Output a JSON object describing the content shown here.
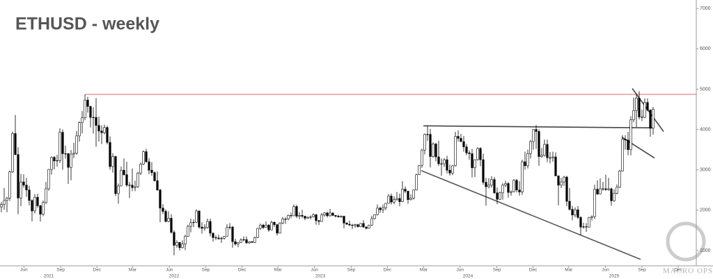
{
  "chart_data": {
    "type": "candlestick",
    "title": "ETHUSD - weekly",
    "watermark": "MACRO OPS",
    "up_color": "#ffffff",
    "down_color": "#000000",
    "outline_color": "#000000",
    "xlim": [
      -0.5,
      249.5
    ],
    "ylim": [
      620,
      7210
    ],
    "yticks": [
      1000,
      2000,
      3000,
      4000,
      5000,
      6000,
      7000
    ],
    "xticks": [
      {
        "value": 8.1,
        "label": "Jun"
      },
      {
        "value": 21.3,
        "label": "Sep"
      },
      {
        "value": 34.3,
        "label": "Dec"
      },
      {
        "value": 47.1,
        "label": "Mar"
      },
      {
        "value": 60.3,
        "label": "Jun"
      },
      {
        "value": 73.4,
        "label": "Sep"
      },
      {
        "value": 86.4,
        "label": "Dec"
      },
      {
        "value": 99.3,
        "label": "Mar"
      },
      {
        "value": 112.4,
        "label": "Jun"
      },
      {
        "value": 125.6,
        "label": "Sep"
      },
      {
        "value": 138.6,
        "label": "Dec"
      },
      {
        "value": 151.6,
        "label": "Mar"
      },
      {
        "value": 164.7,
        "label": "Jun"
      },
      {
        "value": 177.9,
        "label": "Sep"
      },
      {
        "value": 190.9,
        "label": "Dec"
      },
      {
        "value": 203.7,
        "label": "Mar"
      },
      {
        "value": 216.9,
        "label": "Jun"
      },
      {
        "value": 230.0,
        "label": "Sep"
      },
      {
        "value": 243.0,
        "label": "Dec"
      }
    ],
    "year_ticks": [
      {
        "value": 17,
        "label": "2021"
      },
      {
        "value": 62,
        "label": "2022"
      },
      {
        "value": 114.5,
        "label": "2023"
      },
      {
        "value": 167.5,
        "label": "2024"
      },
      {
        "value": 220,
        "label": "2025"
      }
    ],
    "lines": [
      {
        "x": [
          30,
          249.5
        ],
        "y": [
          4870,
          4870
        ],
        "color": "#e06666"
      },
      {
        "x": [
          151.5,
          234
        ],
        "y": [
          4090,
          4040
        ],
        "color": "#444444"
      },
      {
        "x": [
          150.75,
          229.5
        ],
        "y": [
          2980,
          780
        ],
        "color": "#555555"
      },
      {
        "x": [
          226.5,
          237.75
        ],
        "y": [
          5017,
          3948
        ],
        "color": "#444444"
      },
      {
        "x": [
          222.75,
          234.5
        ],
        "y": [
          3810,
          3293
        ],
        "color": "#444444"
      }
    ],
    "candles": [
      [
        2080,
        2200,
        1950,
        2140
      ],
      [
        2140,
        2550,
        2010,
        2240
      ],
      [
        2240,
        2330,
        1950,
        2300
      ],
      [
        2300,
        2980,
        2230,
        2950
      ],
      [
        2950,
        3950,
        2920,
        3900
      ],
      [
        3900,
        4360,
        3360,
        3380
      ],
      [
        3380,
        3560,
        1900,
        2300
      ],
      [
        2300,
        2900,
        2100,
        2700
      ],
      [
        2700,
        2890,
        2560,
        2620
      ],
      [
        2620,
        2800,
        2330,
        2500
      ],
      [
        2500,
        2600,
        2120,
        2240
      ],
      [
        2240,
        2270,
        1720,
        1980
      ],
      [
        1980,
        2400,
        1920,
        2320
      ],
      [
        2320,
        2410,
        2060,
        2110
      ],
      [
        2110,
        2130,
        1720,
        1900
      ],
      [
        1900,
        2240,
        1850,
        2190
      ],
      [
        2190,
        2700,
        2150,
        2530
      ],
      [
        2530,
        3020,
        2480,
        3010
      ],
      [
        3010,
        3330,
        2880,
        3310
      ],
      [
        3310,
        3340,
        3010,
        3220
      ],
      [
        3220,
        3370,
        3080,
        3230
      ],
      [
        3230,
        4030,
        3170,
        3930
      ],
      [
        3930,
        4000,
        3000,
        3400
      ],
      [
        3400,
        3600,
        3280,
        3400
      ],
      [
        3400,
        3420,
        2650,
        3060
      ],
      [
        3060,
        3490,
        2740,
        3390
      ],
      [
        3390,
        3670,
        3290,
        3410
      ],
      [
        3410,
        3960,
        3370,
        3840
      ],
      [
        3840,
        4200,
        3700,
        4170
      ],
      [
        4170,
        4460,
        3900,
        4290
      ],
      [
        4290,
        4870,
        4230,
        4730
      ],
      [
        4730,
        4810,
        4420,
        4570
      ],
      [
        4570,
        4590,
        4050,
        4300
      ],
      [
        4300,
        4550,
        3900,
        4300
      ],
      [
        4300,
        4780,
        3570,
        4100
      ],
      [
        4100,
        4320,
        3700,
        3960
      ],
      [
        3960,
        4100,
        3640,
        3920
      ],
      [
        3920,
        4120,
        3880,
        4050
      ],
      [
        4050,
        4090,
        3630,
        3680
      ],
      [
        3680,
        3830,
        3000,
        3080
      ],
      [
        3080,
        3410,
        2930,
        3330
      ],
      [
        3330,
        3350,
        2350,
        2410
      ],
      [
        2410,
        2660,
        2160,
        2600
      ],
      [
        2600,
        3080,
        2590,
        2990
      ],
      [
        2990,
        3280,
        2850,
        2880
      ],
      [
        2880,
        3200,
        2580,
        2620
      ],
      [
        2620,
        2700,
        2300,
        2620
      ],
      [
        2620,
        3030,
        2470,
        2560
      ],
      [
        2560,
        2730,
        2470,
        2580
      ],
      [
        2580,
        2950,
        2550,
        2920
      ],
      [
        2920,
        3180,
        2870,
        3140
      ],
      [
        3140,
        3480,
        3120,
        3450
      ],
      [
        3450,
        3520,
        3180,
        3200
      ],
      [
        3200,
        3290,
        2890,
        2990
      ],
      [
        2990,
        3190,
        2850,
        2930
      ],
      [
        2930,
        2960,
        2710,
        2730
      ],
      [
        2730,
        2960,
        2480,
        2500
      ],
      [
        2500,
        2530,
        1700,
        2050
      ],
      [
        2050,
        2150,
        1900,
        1970
      ],
      [
        1970,
        2020,
        1700,
        1720
      ],
      [
        1720,
        1970,
        1700,
        1800
      ],
      [
        1800,
        1900,
        1420,
        1450
      ],
      [
        1450,
        1500,
        880,
        1130
      ],
      [
        1130,
        1250,
        1070,
        1200
      ],
      [
        1200,
        1210,
        1000,
        1070
      ],
      [
        1070,
        1250,
        1050,
        1160
      ],
      [
        1160,
        1390,
        1010,
        1350
      ],
      [
        1350,
        1640,
        1340,
        1600
      ],
      [
        1600,
        1790,
        1450,
        1690
      ],
      [
        1690,
        1770,
        1580,
        1700
      ],
      [
        1700,
        2020,
        1680,
        1980
      ],
      [
        1980,
        1990,
        1540,
        1580
      ],
      [
        1580,
        1700,
        1420,
        1550
      ],
      [
        1550,
        1650,
        1490,
        1570
      ],
      [
        1570,
        1790,
        1540,
        1720
      ],
      [
        1720,
        1790,
        1350,
        1430
      ],
      [
        1430,
        1440,
        1220,
        1320
      ],
      [
        1320,
        1380,
        1260,
        1310
      ],
      [
        1310,
        1390,
        1270,
        1290
      ],
      [
        1290,
        1340,
        1190,
        1300
      ],
      [
        1300,
        1360,
        1270,
        1350
      ],
      [
        1350,
        1650,
        1340,
        1570
      ],
      [
        1570,
        1680,
        1520,
        1580
      ],
      [
        1580,
        1610,
        1070,
        1220
      ],
      [
        1220,
        1290,
        1120,
        1160
      ],
      [
        1160,
        1210,
        1080,
        1200
      ],
      [
        1200,
        1300,
        1190,
        1260
      ],
      [
        1260,
        1350,
        1230,
        1270
      ],
      [
        1270,
        1350,
        1160,
        1190
      ],
      [
        1190,
        1230,
        1160,
        1220
      ],
      [
        1220,
        1230,
        1190,
        1200
      ],
      [
        1200,
        1350,
        1190,
        1320
      ],
      [
        1320,
        1560,
        1310,
        1550
      ],
      [
        1550,
        1670,
        1510,
        1630
      ],
      [
        1630,
        1660,
        1530,
        1570
      ],
      [
        1570,
        1720,
        1560,
        1630
      ],
      [
        1630,
        1650,
        1460,
        1510
      ],
      [
        1510,
        1740,
        1500,
        1700
      ],
      [
        1700,
        1720,
        1580,
        1640
      ],
      [
        1640,
        1660,
        1370,
        1430
      ],
      [
        1430,
        1700,
        1420,
        1680
      ],
      [
        1680,
        1830,
        1650,
        1780
      ],
      [
        1780,
        1820,
        1660,
        1780
      ],
      [
        1780,
        1890,
        1750,
        1870
      ],
      [
        1870,
        1940,
        1800,
        1860
      ],
      [
        1860,
        2140,
        1850,
        2090
      ],
      [
        2090,
        2130,
        1800,
        1850
      ],
      [
        1850,
        1950,
        1780,
        1870
      ],
      [
        1870,
        2010,
        1800,
        1850
      ],
      [
        1850,
        1860,
        1750,
        1800
      ],
      [
        1800,
        1850,
        1790,
        1820
      ],
      [
        1820,
        1870,
        1770,
        1830
      ],
      [
        1830,
        1920,
        1820,
        1890
      ],
      [
        1890,
        1900,
        1640,
        1740
      ],
      [
        1740,
        1760,
        1630,
        1720
      ],
      [
        1720,
        1930,
        1710,
        1880
      ],
      [
        1880,
        1950,
        1840,
        1930
      ],
      [
        1930,
        1960,
        1820,
        1860
      ],
      [
        1860,
        2030,
        1840,
        1930
      ],
      [
        1930,
        1940,
        1850,
        1870
      ],
      [
        1870,
        1880,
        1820,
        1850
      ],
      [
        1850,
        1890,
        1820,
        1830
      ],
      [
        1830,
        1870,
        1810,
        1850
      ],
      [
        1850,
        1860,
        1550,
        1680
      ],
      [
        1680,
        1700,
        1640,
        1650
      ],
      [
        1650,
        1740,
        1610,
        1630
      ],
      [
        1630,
        1660,
        1530,
        1620
      ],
      [
        1620,
        1660,
        1560,
        1640
      ],
      [
        1640,
        1660,
        1570,
        1590
      ],
      [
        1590,
        1680,
        1580,
        1670
      ],
      [
        1670,
        1750,
        1570,
        1580
      ],
      [
        1580,
        1600,
        1520,
        1550
      ],
      [
        1550,
        1640,
        1540,
        1630
      ],
      [
        1630,
        1860,
        1610,
        1790
      ],
      [
        1790,
        1900,
        1770,
        1890
      ],
      [
        1890,
        2140,
        1870,
        2050
      ],
      [
        2050,
        2090,
        1930,
        2010
      ],
      [
        2010,
        2140,
        1930,
        2060
      ],
      [
        2060,
        2180,
        2000,
        2170
      ],
      [
        2170,
        2400,
        2160,
        2350
      ],
      [
        2350,
        2410,
        2140,
        2200
      ],
      [
        2200,
        2340,
        2150,
        2260
      ],
      [
        2260,
        2450,
        2230,
        2290
      ],
      [
        2290,
        2410,
        2100,
        2210
      ],
      [
        2210,
        2720,
        2200,
        2520
      ],
      [
        2520,
        2590,
        2420,
        2470
      ],
      [
        2470,
        2480,
        2160,
        2260
      ],
      [
        2260,
        2390,
        2240,
        2300
      ],
      [
        2300,
        2510,
        2260,
        2500
      ],
      [
        2500,
        2900,
        2490,
        2880
      ],
      [
        2880,
        3120,
        2870,
        3110
      ],
      [
        3110,
        3520,
        3050,
        3490
      ],
      [
        3490,
        3900,
        3380,
        3880
      ],
      [
        3880,
        4090,
        3720,
        3880
      ],
      [
        3880,
        4010,
        3060,
        3330
      ],
      [
        3330,
        3680,
        3300,
        3640
      ],
      [
        3640,
        3670,
        3210,
        3320
      ],
      [
        3320,
        3720,
        3100,
        3150
      ],
      [
        3150,
        3280,
        2850,
        3150
      ],
      [
        3150,
        3290,
        3070,
        3250
      ],
      [
        3250,
        3350,
        2910,
        2990
      ],
      [
        2990,
        3130,
        2860,
        2920
      ],
      [
        2920,
        3120,
        2870,
        3100
      ],
      [
        3100,
        3940,
        3080,
        3830
      ],
      [
        3830,
        3980,
        3700,
        3780
      ],
      [
        3780,
        3890,
        3690,
        3700
      ],
      [
        3700,
        3840,
        3450,
        3570
      ],
      [
        3570,
        3640,
        3360,
        3420
      ],
      [
        3420,
        3480,
        3250,
        3400
      ],
      [
        3400,
        3520,
        2810,
        3050
      ],
      [
        3050,
        3260,
        2820,
        3250
      ],
      [
        3250,
        3560,
        3230,
        3530
      ],
      [
        3530,
        3560,
        3090,
        3250
      ],
      [
        3250,
        3400,
        2630,
        2690
      ],
      [
        2690,
        2800,
        2110,
        2580
      ],
      [
        2580,
        2790,
        2540,
        2620
      ],
      [
        2620,
        2840,
        2560,
        2760
      ],
      [
        2760,
        2820,
        2400,
        2430
      ],
      [
        2430,
        2560,
        2150,
        2270
      ],
      [
        2270,
        2460,
        2250,
        2430
      ],
      [
        2430,
        2670,
        2260,
        2620
      ],
      [
        2620,
        2730,
        2570,
        2660
      ],
      [
        2660,
        2700,
        2310,
        2440
      ],
      [
        2440,
        2490,
        2360,
        2460
      ],
      [
        2460,
        2770,
        2440,
        2740
      ],
      [
        2740,
        2770,
        2440,
        2500
      ],
      [
        2500,
        2720,
        2360,
        2450
      ],
      [
        2450,
        3250,
        2380,
        3200
      ],
      [
        3200,
        3450,
        3000,
        3100
      ],
      [
        3100,
        3500,
        3030,
        3400
      ],
      [
        3400,
        3740,
        3280,
        3700
      ],
      [
        3700,
        4010,
        3500,
        4000
      ],
      [
        4000,
        4110,
        3520,
        3950
      ],
      [
        3950,
        4000,
        3100,
        3330
      ],
      [
        3330,
        3540,
        3300,
        3360
      ],
      [
        3360,
        3750,
        3330,
        3630
      ],
      [
        3630,
        3750,
        3190,
        3300
      ],
      [
        3300,
        3440,
        3160,
        3300
      ],
      [
        3300,
        3450,
        3200,
        3320
      ],
      [
        3320,
        3430,
        2840,
        2850
      ],
      [
        2850,
        2860,
        2120,
        2620
      ],
      [
        2620,
        2800,
        2550,
        2700
      ],
      [
        2700,
        2850,
        2600,
        2820
      ],
      [
        2820,
        2850,
        2100,
        2220
      ],
      [
        2220,
        2550,
        1990,
        2020
      ],
      [
        2020,
        2110,
        1750,
        1880
      ],
      [
        1880,
        2070,
        1820,
        2010
      ],
      [
        2010,
        2100,
        1780,
        1820
      ],
      [
        1820,
        1850,
        1380,
        1580
      ],
      [
        1580,
        1690,
        1540,
        1590
      ],
      [
        1590,
        1680,
        1460,
        1580
      ],
      [
        1580,
        1830,
        1570,
        1820
      ],
      [
        1820,
        1870,
        1740,
        1840
      ],
      [
        1840,
        2630,
        1780,
        2520
      ],
      [
        2520,
        2740,
        2380,
        2400
      ],
      [
        2400,
        2790,
        2390,
        2530
      ],
      [
        2530,
        2700,
        2480,
        2530
      ],
      [
        2530,
        2880,
        2480,
        2510
      ],
      [
        2510,
        2800,
        2480,
        2530
      ],
      [
        2530,
        2560,
        2110,
        2230
      ],
      [
        2230,
        2520,
        2210,
        2420
      ],
      [
        2420,
        2640,
        2390,
        2570
      ],
      [
        2570,
        3000,
        2550,
        2970
      ],
      [
        2970,
        3860,
        2960,
        3760
      ],
      [
        3760,
        3860,
        3500,
        3740
      ],
      [
        3740,
        3940,
        3360,
        3500
      ],
      [
        3500,
        4330,
        3360,
        4240
      ],
      [
        4240,
        4790,
        4180,
        4470
      ],
      [
        4470,
        4890,
        4060,
        4780
      ],
      [
        4780,
        4950,
        4250,
        4310
      ],
      [
        4310,
        4490,
        4210,
        4300
      ],
      [
        4300,
        4770,
        4280,
        4670
      ],
      [
        4670,
        4770,
        4450,
        4480
      ],
      [
        4480,
        4500,
        3820,
        4030
      ],
      [
        4030,
        4560,
        3870,
        4500
      ]
    ]
  }
}
